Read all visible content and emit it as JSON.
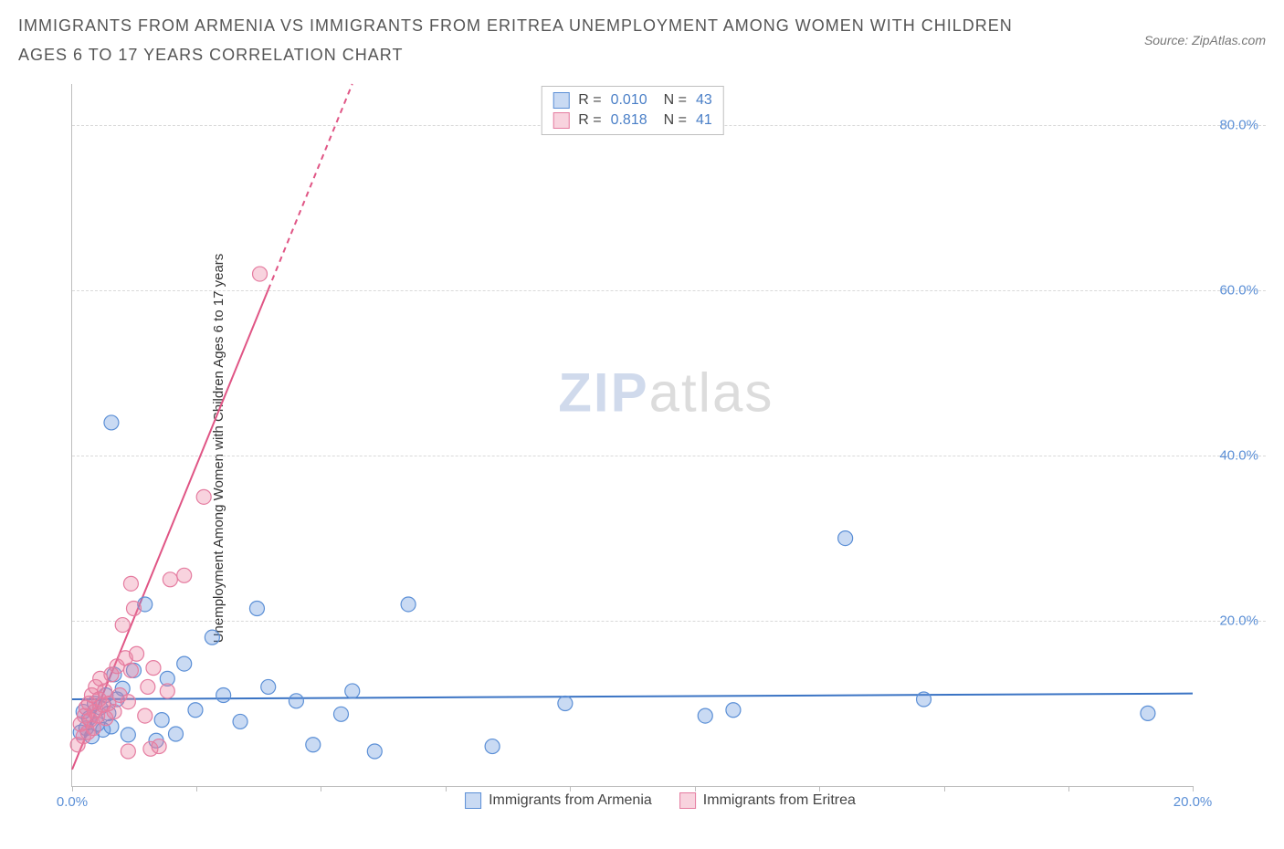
{
  "title": "IMMIGRANTS FROM ARMENIA VS IMMIGRANTS FROM ERITREA UNEMPLOYMENT AMONG WOMEN WITH CHILDREN AGES 6 TO 17 YEARS CORRELATION CHART",
  "source": "Source: ZipAtlas.com",
  "ylabel": "Unemployment Among Women with Children Ages 6 to 17 years",
  "watermark": {
    "part1": "ZIP",
    "part2": "atlas"
  },
  "chart": {
    "type": "scatter",
    "xlim": [
      0,
      20
    ],
    "ylim": [
      0,
      85
    ],
    "x_ticks": [
      0,
      2.22,
      4.44,
      6.67,
      8.89,
      11.11,
      13.33,
      15.56,
      17.78,
      20
    ],
    "x_tick_labels": {
      "0": "0.0%",
      "20": "20.0%"
    },
    "y_gridlines": [
      20,
      40,
      60,
      80
    ],
    "y_tick_labels": {
      "20": "20.0%",
      "40": "40.0%",
      "60": "60.0%",
      "80": "80.0%"
    },
    "background_color": "#ffffff",
    "grid_color": "#d9d9d9",
    "axis_color": "#bdbdbd",
    "tick_label_color": "#5b8fd6",
    "point_radius": 8,
    "series": [
      {
        "name": "Immigrants from Armenia",
        "fill": "rgba(100,150,220,0.35)",
        "stroke": "#5b8fd6",
        "R": "0.010",
        "N": "43",
        "trend": {
          "x1": 0,
          "y1": 10.5,
          "x2": 20,
          "y2": 11.2,
          "color": "#3b74c4",
          "width": 2
        },
        "points": [
          [
            0.15,
            6.5
          ],
          [
            0.2,
            9
          ],
          [
            0.25,
            7
          ],
          [
            0.3,
            8.2
          ],
          [
            0.35,
            6
          ],
          [
            0.4,
            10
          ],
          [
            0.45,
            7.5
          ],
          [
            0.5,
            9.5
          ],
          [
            0.55,
            6.8
          ],
          [
            0.6,
            11
          ],
          [
            0.65,
            8.8
          ],
          [
            0.7,
            7.2
          ],
          [
            0.75,
            13.5
          ],
          [
            0.8,
            10.5
          ],
          [
            0.9,
            11.8
          ],
          [
            1.0,
            6.2
          ],
          [
            1.1,
            14
          ],
          [
            1.3,
            22
          ],
          [
            0.7,
            44
          ],
          [
            1.5,
            5.5
          ],
          [
            1.6,
            8
          ],
          [
            1.7,
            13
          ],
          [
            1.85,
            6.3
          ],
          [
            2.0,
            14.8
          ],
          [
            2.2,
            9.2
          ],
          [
            2.5,
            18
          ],
          [
            2.7,
            11
          ],
          [
            3.0,
            7.8
          ],
          [
            3.3,
            21.5
          ],
          [
            3.5,
            12
          ],
          [
            4.0,
            10.3
          ],
          [
            4.3,
            5
          ],
          [
            4.8,
            8.7
          ],
          [
            5.0,
            11.5
          ],
          [
            5.4,
            4.2
          ],
          [
            6.0,
            22
          ],
          [
            7.5,
            4.8
          ],
          [
            8.8,
            10
          ],
          [
            11.3,
            8.5
          ],
          [
            11.8,
            9.2
          ],
          [
            13.8,
            30
          ],
          [
            15.2,
            10.5
          ],
          [
            19.2,
            8.8
          ]
        ]
      },
      {
        "name": "Immigrants from Eritrea",
        "fill": "rgba(235,130,160,0.35)",
        "stroke": "#e57ca0",
        "R": "0.818",
        "N": "41",
        "trend": {
          "x1": 0,
          "y1": 2,
          "x2": 5.0,
          "y2": 85,
          "dashed_from_x": 3.5,
          "color": "#e05585",
          "width": 2
        },
        "points": [
          [
            0.1,
            5
          ],
          [
            0.15,
            7.5
          ],
          [
            0.2,
            6
          ],
          [
            0.22,
            8.5
          ],
          [
            0.25,
            9.5
          ],
          [
            0.28,
            6.5
          ],
          [
            0.3,
            10
          ],
          [
            0.32,
            8
          ],
          [
            0.35,
            11
          ],
          [
            0.38,
            7
          ],
          [
            0.4,
            9
          ],
          [
            0.42,
            12
          ],
          [
            0.45,
            8.5
          ],
          [
            0.48,
            10.5
          ],
          [
            0.5,
            13
          ],
          [
            0.55,
            9.8
          ],
          [
            0.58,
            11.5
          ],
          [
            0.6,
            8.2
          ],
          [
            0.65,
            10
          ],
          [
            0.7,
            13.5
          ],
          [
            0.75,
            9
          ],
          [
            0.8,
            14.5
          ],
          [
            0.85,
            11
          ],
          [
            0.9,
            19.5
          ],
          [
            0.95,
            15.5
          ],
          [
            1.0,
            10.2
          ],
          [
            1.05,
            14
          ],
          [
            1.1,
            21.5
          ],
          [
            1.15,
            16
          ],
          [
            1.05,
            24.5
          ],
          [
            1.3,
            8.5
          ],
          [
            1.35,
            12
          ],
          [
            1.45,
            14.3
          ],
          [
            1.4,
            4.5
          ],
          [
            1.55,
            4.8
          ],
          [
            1.7,
            11.5
          ],
          [
            1.75,
            25
          ],
          [
            2.0,
            25.5
          ],
          [
            2.35,
            35
          ],
          [
            3.35,
            62
          ],
          [
            1.0,
            4.2
          ]
        ]
      }
    ]
  },
  "legend_bottom": [
    {
      "swatch": "blue",
      "label": "Immigrants from Armenia"
    },
    {
      "swatch": "pink",
      "label": "Immigrants from Eritrea"
    }
  ]
}
